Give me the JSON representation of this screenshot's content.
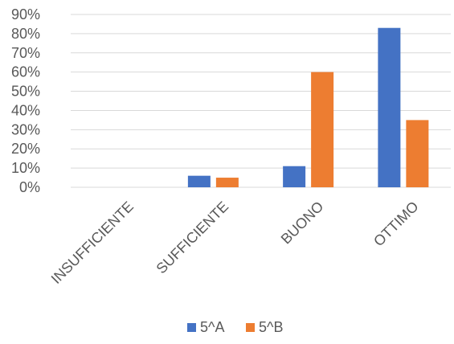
{
  "chart_data": {
    "type": "bar",
    "categories": [
      "INSUFFICIENTE",
      "SUFFICIENTE",
      "BUONO",
      "OTTIMO"
    ],
    "series": [
      {
        "name": "5^A",
        "color": "#4472c4",
        "values": [
          0,
          6,
          11,
          83
        ]
      },
      {
        "name": "5^B",
        "color": "#ed7d31",
        "values": [
          0,
          5,
          60,
          35
        ]
      }
    ],
    "y_ticks": [
      "0%",
      "10%",
      "20%",
      "30%",
      "40%",
      "50%",
      "60%",
      "70%",
      "80%",
      "90%"
    ],
    "ylim": [
      0,
      90
    ],
    "y_unit": "%",
    "grid": true,
    "legend_position": "bottom"
  }
}
